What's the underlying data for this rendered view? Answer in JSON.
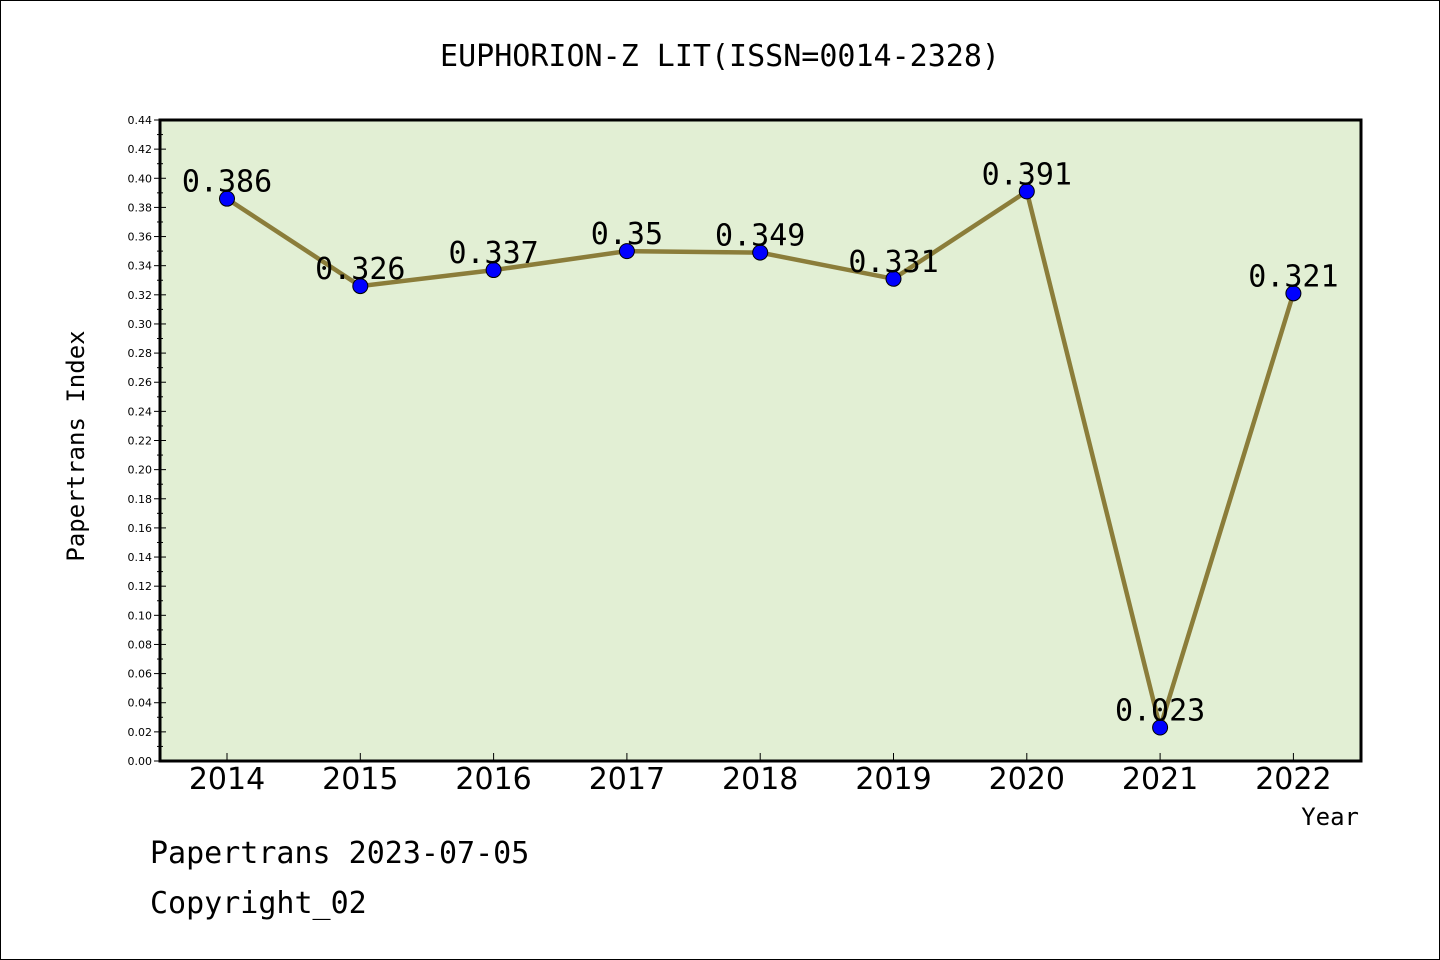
{
  "chart_data": {
    "type": "line",
    "title": "EUPHORION-Z LIT(ISSN=0014-2328)",
    "xlabel": "Year",
    "ylabel": "Papertrans Index",
    "categories": [
      "2014",
      "2015",
      "2016",
      "2017",
      "2018",
      "2019",
      "2020",
      "2021",
      "2022"
    ],
    "series": [
      {
        "values": [
          0.386,
          0.326,
          0.337,
          0.35,
          0.349,
          0.331,
          0.391,
          0.023,
          0.321
        ],
        "data_labels": [
          "0.386",
          "0.326",
          "0.337",
          "0.35",
          "0.349",
          "0.331",
          "0.391",
          "0.023",
          "0.321"
        ]
      }
    ],
    "ylim": [
      0,
      0.44
    ],
    "yticks": [
      "0.00",
      "0.02",
      "0.04",
      "0.06",
      "0.08",
      "0.10",
      "0.12",
      "0.14",
      "0.16",
      "0.18",
      "0.20",
      "0.22",
      "0.24",
      "0.26",
      "0.28",
      "0.30",
      "0.32",
      "0.34",
      "0.36",
      "0.38",
      "0.40",
      "0.42",
      "0.44"
    ],
    "grid": false,
    "colors": {
      "plot_background": "#e2efd4",
      "line": "#8b7d3a",
      "marker": "#0000ff"
    }
  },
  "footer": {
    "line1": "Papertrans 2023-07-05",
    "line2": "Copyright_02"
  }
}
